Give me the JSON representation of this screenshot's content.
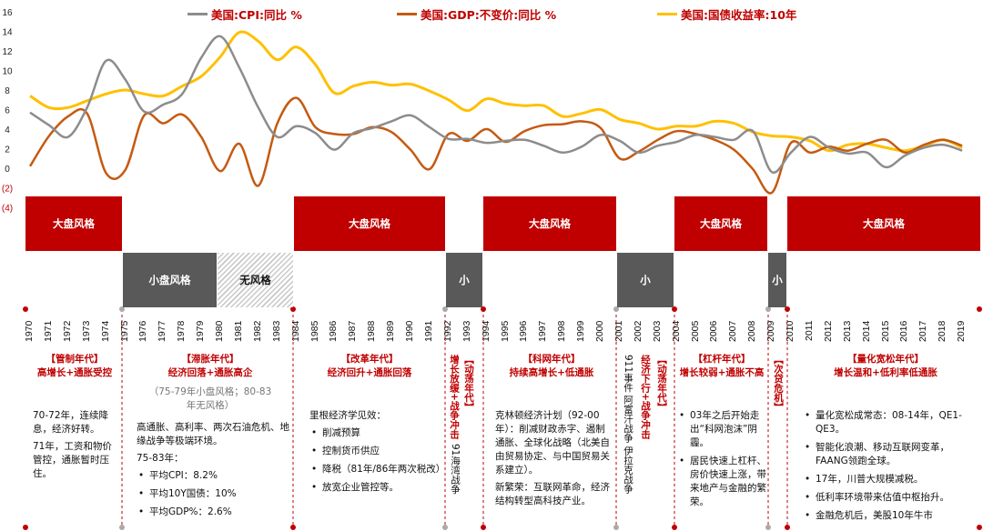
{
  "legend": [
    {
      "label": "美国:CPI:同比 %",
      "color": "#8c8c8c"
    },
    {
      "label": "美国:GDP:不变价:同比 %",
      "color": "#c55a11"
    },
    {
      "label": "美国:国债收益率:10年",
      "color": "#ffc000"
    }
  ],
  "chart_data": {
    "type": "line",
    "x": [
      1970,
      1971,
      1972,
      1973,
      1974,
      1975,
      1976,
      1977,
      1978,
      1979,
      1980,
      1981,
      1982,
      1983,
      1984,
      1985,
      1986,
      1987,
      1988,
      1989,
      1990,
      1991,
      1992,
      1993,
      1994,
      1995,
      1996,
      1997,
      1998,
      1999,
      2000,
      2001,
      2002,
      2003,
      2004,
      2005,
      2006,
      2007,
      2008,
      2009,
      2010,
      2011,
      2012,
      2013,
      2014,
      2015,
      2016,
      2017,
      2018,
      2019
    ],
    "y_ticks": [
      "16",
      "14",
      "12",
      "10",
      "8",
      "6",
      "4",
      "2",
      "0",
      "(2)",
      "(4)"
    ],
    "y_tick_values": [
      16,
      14,
      12,
      10,
      8,
      6,
      4,
      2,
      0,
      -2,
      -4
    ],
    "ylim": [
      -4,
      16
    ],
    "series": [
      {
        "name": "美国:CPI:同比 %",
        "color": "#8c8c8c",
        "values": [
          5.7,
          4.4,
          3.2,
          6.2,
          11.0,
          9.1,
          5.8,
          6.5,
          7.6,
          11.3,
          13.5,
          10.3,
          6.2,
          3.2,
          4.3,
          3.6,
          1.9,
          3.6,
          4.1,
          4.8,
          5.4,
          4.2,
          3.0,
          3.0,
          2.6,
          2.8,
          2.9,
          2.3,
          1.6,
          2.2,
          3.4,
          2.8,
          1.6,
          2.3,
          2.7,
          3.4,
          3.2,
          2.9,
          3.8,
          -0.4,
          1.6,
          3.2,
          2.1,
          1.5,
          1.6,
          0.1,
          1.3,
          2.1,
          2.4,
          1.8
        ]
      },
      {
        "name": "美国:GDP:不变价:同比 %",
        "color": "#c55a11",
        "values": [
          0.2,
          3.3,
          5.3,
          5.6,
          -0.5,
          -0.2,
          5.4,
          4.6,
          5.5,
          3.2,
          -0.3,
          2.5,
          -1.8,
          4.6,
          7.2,
          4.2,
          3.5,
          3.5,
          4.2,
          3.7,
          1.9,
          -0.1,
          3.5,
          2.8,
          4.0,
          2.7,
          3.8,
          4.4,
          4.5,
          4.8,
          4.1,
          1.0,
          1.7,
          2.9,
          3.8,
          3.5,
          2.9,
          1.9,
          -0.1,
          -2.5,
          2.6,
          1.6,
          2.2,
          1.8,
          2.5,
          2.9,
          1.6,
          2.4,
          2.9,
          2.3
        ]
      },
      {
        "name": "美国:国债收益率:10年",
        "color": "#ffc000",
        "values": [
          7.4,
          6.2,
          6.2,
          6.9,
          7.6,
          8.0,
          7.6,
          7.4,
          8.4,
          9.4,
          11.4,
          13.9,
          13.0,
          11.1,
          12.4,
          10.6,
          7.7,
          8.4,
          8.8,
          8.5,
          8.6,
          7.9,
          7.0,
          5.9,
          7.1,
          6.6,
          6.4,
          6.4,
          5.3,
          5.6,
          6.0,
          5.0,
          4.6,
          4.0,
          4.3,
          4.3,
          4.8,
          4.6,
          3.7,
          3.3,
          3.2,
          2.8,
          1.8,
          2.4,
          2.5,
          2.1,
          1.8,
          2.3,
          2.9,
          2.1
        ]
      }
    ]
  },
  "bands": [
    {
      "label": "大盘风格",
      "type": "large"
    },
    {
      "label": "小盘风格",
      "type": "small"
    },
    {
      "label": "无风格",
      "type": "none"
    },
    {
      "label": "大盘风格",
      "type": "large"
    },
    {
      "label": "小",
      "type": "small"
    },
    {
      "label": "大盘风格",
      "type": "large"
    },
    {
      "label": "小",
      "type": "small"
    },
    {
      "label": "大盘风格",
      "type": "large"
    },
    {
      "label": "小",
      "type": "small"
    },
    {
      "label": "大盘风格",
      "type": "large"
    }
  ],
  "years": [
    "1970",
    "1971",
    "1972",
    "1973",
    "1974",
    "1975",
    "1976",
    "1977",
    "1978",
    "1979",
    "1980",
    "1981",
    "1982",
    "1983",
    "1984",
    "1985",
    "1986",
    "1987",
    "1988",
    "1989",
    "1990",
    "1991",
    "1992",
    "1993",
    "1994",
    "1995",
    "1996",
    "1997",
    "1998",
    "1999",
    "2000",
    "2001",
    "2002",
    "2003",
    "2004",
    "2005",
    "2006",
    "2007",
    "2008",
    "2009",
    "2010",
    "2011",
    "2012",
    "2013",
    "2014",
    "2015",
    "2016",
    "2017",
    "2018",
    "2019"
  ],
  "eras": {
    "managed": {
      "title": "【管制年代】",
      "sub": "高增长+通胀受控"
    },
    "stagflation": {
      "title": "【滞胀年代】",
      "sub": "经济回落+通胀高企",
      "note1": "（75-79年小盘风格；80-83",
      "note2": "年无风格）"
    },
    "reform": {
      "title": "【改革年代】",
      "sub": "经济回升+通胀回落"
    },
    "internet": {
      "title": "【科网年代】",
      "sub": "持续高增长+低通胀"
    },
    "leverage": {
      "title": "【杠杆年代】",
      "sub": "增长较弱+通胀不高"
    },
    "qe": {
      "title": "【量化宽松年代】",
      "sub": "增长温和+低利率低通胀"
    }
  },
  "vertical": {
    "gulf_title": "增长放缓+战争冲击",
    "gulf_sub": "【动荡年代】",
    "gulf_event": "91海湾战争",
    "war_title": "经济下行+战争冲击",
    "war_sub": "【动荡年代】",
    "war_event": "911事件  阿富汗战争  伊拉克战争",
    "crisis": "【次贷危机】"
  },
  "texts": {
    "managed_p1": "70-72年，连续降息，经济好转。",
    "managed_p2": "71年，工资和物价管控，通胀暂时压住。",
    "stag_p1": "高通胀、高利率、两次石油危机、地缘战争等极端环境。",
    "stag_p2": "75-83年：",
    "stag_b1": "平均CPI：8.2%",
    "stag_b2": "平均10Y国债：10%",
    "stag_b3": "平均GDP%：2.6%",
    "reform_p1": "里根经济学见效：",
    "reform_b1": "削减预算",
    "reform_b2": "控制货币供应",
    "reform_b3": "降税（81年/86年两次税改）",
    "reform_b4": "放宽企业管控等。",
    "internet_p1": "克林顿经济计划（92-00年）：削减财政赤字、遏制通胀、全球化战略（北美自由贸易协定、与中国贸易关系建立）。",
    "internet_p2": "新繁荣：互联网革命，经济结构转型高科技产业。",
    "lev_b1": "03年之后开始走出“科网泡沫”阴霾。",
    "lev_b2": "居民快速上杠杆、房价快速上涨，带来地产与金融的繁荣。",
    "qe_b1": "量化宽松成常态：08-14年，QE1-QE3。",
    "qe_b2": "智能化浪潮、移动互联网变革，FAANG领跑全球。",
    "qe_b3": "17年，川普大规模减税。",
    "qe_b4": "低利率环境带来估值中枢抬升。",
    "qe_b5": "金融危机后，美股10年牛市"
  }
}
